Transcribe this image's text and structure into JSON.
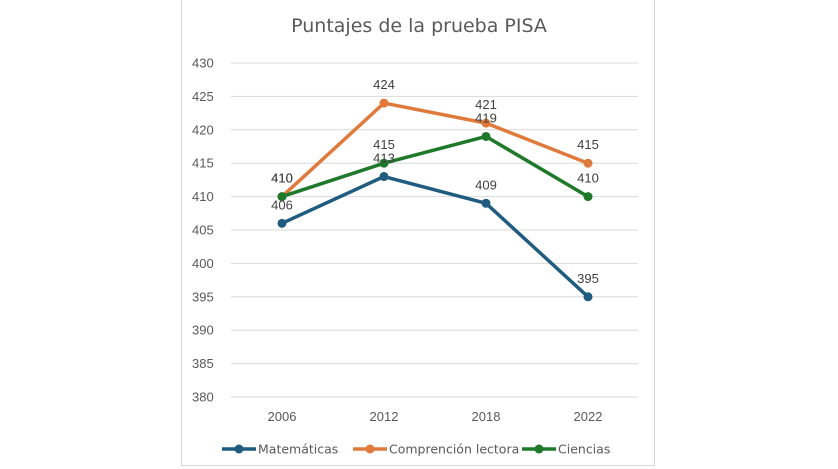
{
  "chart_data": {
    "type": "line",
    "title": "Puntajes de la prueba PISA",
    "xlabel": "",
    "ylabel": "",
    "categories": [
      "2006",
      "2012",
      "2018",
      "2022"
    ],
    "ylim": [
      380,
      430
    ],
    "yticks": [
      430,
      425,
      420,
      415,
      410,
      405,
      400,
      395,
      390,
      385,
      380
    ],
    "grid": true,
    "legend_position": "bottom",
    "series": [
      {
        "name": "Matemáticas",
        "color": "#1f5c7f",
        "values": [
          406,
          413,
          409,
          395
        ]
      },
      {
        "name": "Comprención lectora",
        "color": "#e07a3c",
        "values": [
          410,
          424,
          421,
          415
        ]
      },
      {
        "name": "Ciencias",
        "color": "#1e7a2a",
        "values": [
          410,
          415,
          419,
          410
        ]
      }
    ]
  }
}
